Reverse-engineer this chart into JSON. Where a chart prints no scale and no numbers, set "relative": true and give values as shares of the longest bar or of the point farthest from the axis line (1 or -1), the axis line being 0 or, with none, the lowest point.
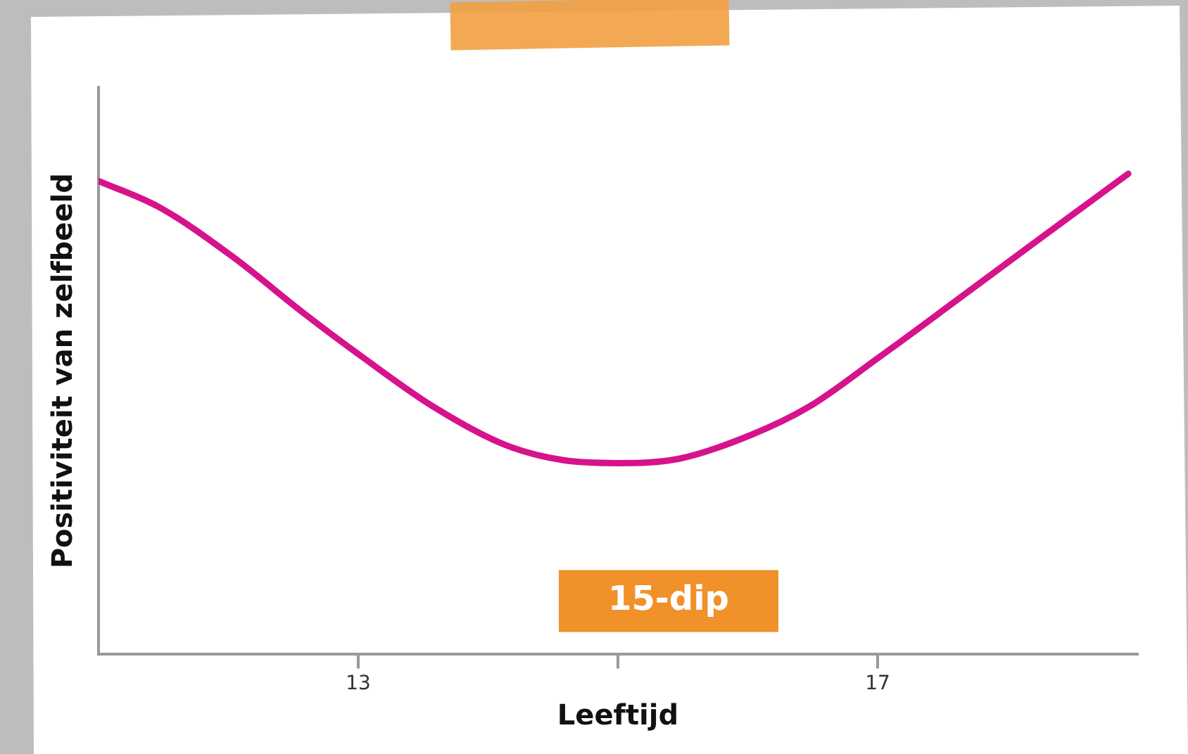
{
  "chart_data": {
    "type": "line",
    "relative": true,
    "xlabel": "Leeftijd",
    "ylabel": "Positiviteit van zelfbeeld",
    "xlim": [
      11,
      19
    ],
    "xticks": [
      13,
      {
        "value": 15,
        "label": null
      },
      17
    ],
    "grid": false,
    "legend": false,
    "marker": "none",
    "line_style": "solid",
    "annotations": [
      "15-dip"
    ],
    "series": [
      {
        "color": "#d6138c",
        "x": [
          11,
          11.47,
          12.02,
          12.58,
          13,
          13.58,
          14.13,
          14.58,
          15,
          15.47,
          16.02,
          16.47,
          17,
          17.59,
          18.24,
          18.93
        ],
        "values": [
          0.985,
          0.93,
          0.83,
          0.71,
          0.625,
          0.515,
          0.436,
          0.404,
          0.398,
          0.407,
          0.456,
          0.515,
          0.616,
          0.733,
          0.863,
          1
        ]
      }
    ]
  }
}
